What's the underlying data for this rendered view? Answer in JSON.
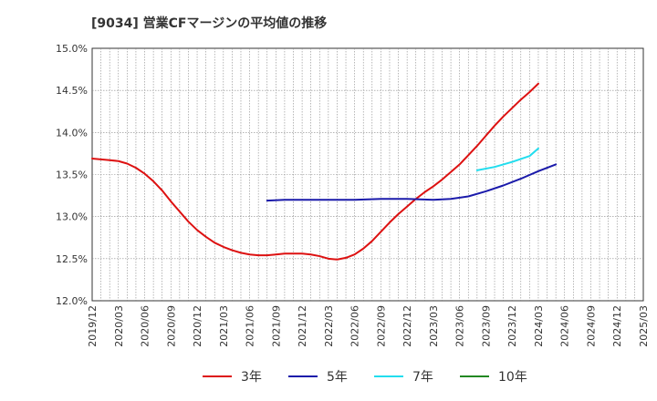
{
  "chart_data": {
    "type": "line",
    "title": "[9034]  営業CFマージンの平均値の推移",
    "xlabel": "",
    "ylabel": "",
    "x_ticks": [
      "2019/12",
      "2020/03",
      "2020/06",
      "2020/09",
      "2020/12",
      "2021/03",
      "2021/06",
      "2021/09",
      "2021/12",
      "2022/03",
      "2022/06",
      "2022/09",
      "2022/12",
      "2023/03",
      "2023/06",
      "2023/09",
      "2023/12",
      "2024/03",
      "2024/06",
      "2024/09",
      "2024/12",
      "2025/03"
    ],
    "y_ticks": [
      "12.0%",
      "12.5%",
      "13.0%",
      "13.5%",
      "14.0%",
      "14.5%",
      "15.0%"
    ],
    "ylim": [
      12.0,
      15.0
    ],
    "grid": true,
    "legend_position": "bottom",
    "series": [
      {
        "name": "3年",
        "color": "#dd1111",
        "points": [
          [
            "2019/12",
            13.69
          ],
          [
            "2020/01",
            13.68
          ],
          [
            "2020/02",
            13.67
          ],
          [
            "2020/03",
            13.66
          ],
          [
            "2020/04",
            13.63
          ],
          [
            "2020/05",
            13.58
          ],
          [
            "2020/06",
            13.51
          ],
          [
            "2020/07",
            13.42
          ],
          [
            "2020/08",
            13.31
          ],
          [
            "2020/09",
            13.18
          ],
          [
            "2020/10",
            13.06
          ],
          [
            "2020/11",
            12.94
          ],
          [
            "2020/12",
            12.84
          ],
          [
            "2021/01",
            12.76
          ],
          [
            "2021/02",
            12.69
          ],
          [
            "2021/03",
            12.64
          ],
          [
            "2021/04",
            12.6
          ],
          [
            "2021/05",
            12.57
          ],
          [
            "2021/06",
            12.55
          ],
          [
            "2021/07",
            12.54
          ],
          [
            "2021/08",
            12.54
          ],
          [
            "2021/09",
            12.55
          ],
          [
            "2021/10",
            12.56
          ],
          [
            "2021/11",
            12.56
          ],
          [
            "2021/12",
            12.56
          ],
          [
            "2022/01",
            12.55
          ],
          [
            "2022/02",
            12.53
          ],
          [
            "2022/03",
            12.5
          ],
          [
            "2022/04",
            12.49
          ],
          [
            "2022/05",
            12.51
          ],
          [
            "2022/06",
            12.55
          ],
          [
            "2022/07",
            12.62
          ],
          [
            "2022/08",
            12.71
          ],
          [
            "2022/09",
            12.82
          ],
          [
            "2022/10",
            12.93
          ],
          [
            "2022/11",
            13.03
          ],
          [
            "2022/12",
            13.12
          ],
          [
            "2023/01",
            13.21
          ],
          [
            "2023/02",
            13.29
          ],
          [
            "2023/03",
            13.36
          ],
          [
            "2023/04",
            13.44
          ],
          [
            "2023/05",
            13.53
          ],
          [
            "2023/06",
            13.62
          ],
          [
            "2023/07",
            13.73
          ],
          [
            "2023/08",
            13.84
          ],
          [
            "2023/09",
            13.96
          ],
          [
            "2023/10",
            14.08
          ],
          [
            "2023/11",
            14.19
          ],
          [
            "2023/12",
            14.29
          ],
          [
            "2024/01",
            14.39
          ],
          [
            "2024/02",
            14.48
          ],
          [
            "2024/03",
            14.58
          ]
        ]
      },
      {
        "name": "5年",
        "color": "#1a1aaa",
        "points": [
          [
            "2021/08",
            13.19
          ],
          [
            "2021/10",
            13.2
          ],
          [
            "2021/12",
            13.2
          ],
          [
            "2022/03",
            13.2
          ],
          [
            "2022/06",
            13.2
          ],
          [
            "2022/09",
            13.21
          ],
          [
            "2022/12",
            13.21
          ],
          [
            "2023/03",
            13.2
          ],
          [
            "2023/05",
            13.21
          ],
          [
            "2023/07",
            13.24
          ],
          [
            "2023/09",
            13.3
          ],
          [
            "2023/11",
            13.37
          ],
          [
            "2024/01",
            13.45
          ],
          [
            "2024/03",
            13.54
          ],
          [
            "2024/05",
            13.62
          ]
        ]
      },
      {
        "name": "7年",
        "color": "#22ddee",
        "points": [
          [
            "2023/08",
            13.55
          ],
          [
            "2023/10",
            13.59
          ],
          [
            "2023/12",
            13.65
          ],
          [
            "2024/02",
            13.72
          ],
          [
            "2024/03",
            13.81
          ]
        ]
      },
      {
        "name": "10年",
        "color": "#228822",
        "points": []
      }
    ]
  }
}
